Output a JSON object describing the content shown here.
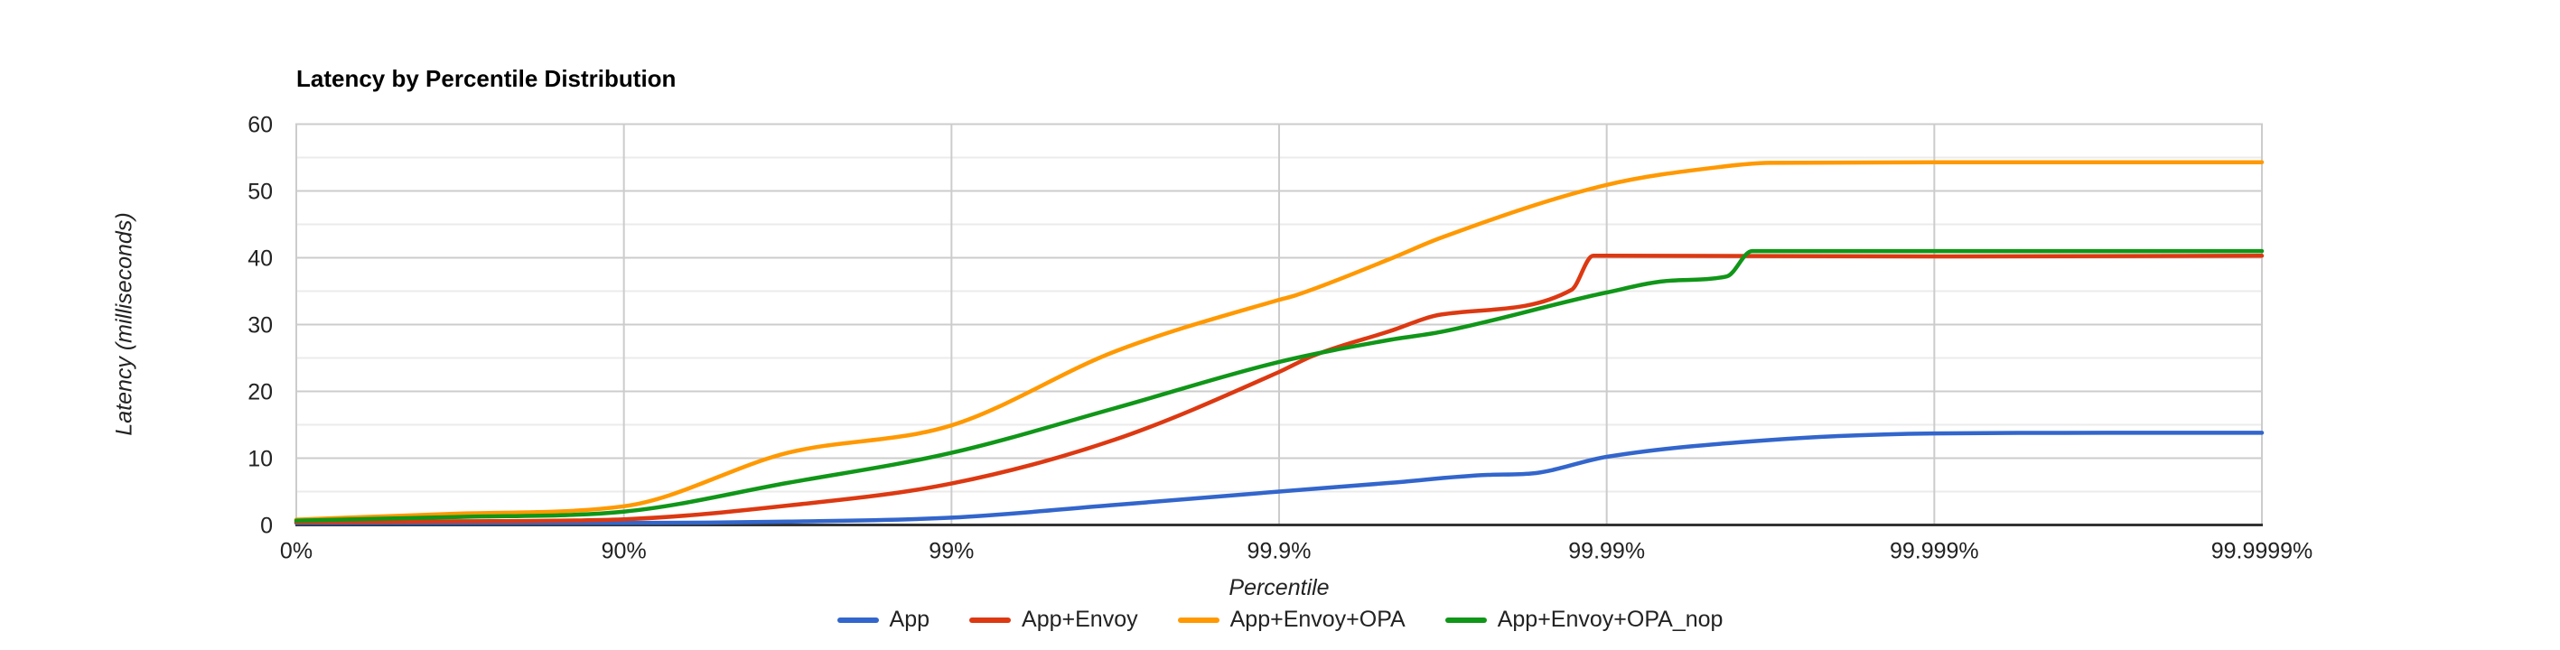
{
  "chart_data": {
    "type": "line",
    "title": "Latency by Percentile Distribution",
    "xlabel": "Percentile",
    "ylabel": "Latency (milliseconds)",
    "grid": true,
    "legend_position": "bottom",
    "x_axis": {
      "scale": "log-percentile",
      "ticks": [
        {
          "label": "0%",
          "p": 0
        },
        {
          "label": "90%",
          "p": 90
        },
        {
          "label": "99%",
          "p": 99
        },
        {
          "label": "99.9%",
          "p": 99.9
        },
        {
          "label": "99.99%",
          "p": 99.99
        },
        {
          "label": "99.999%",
          "p": 99.999
        },
        {
          "label": "99.9999%",
          "p": 99.9999
        }
      ]
    },
    "y_axis": {
      "ylim": [
        0,
        60
      ],
      "major_ticks": [
        0,
        10,
        20,
        30,
        40,
        50,
        60
      ],
      "minor_ticks": [
        5,
        15,
        25,
        35,
        45,
        55
      ]
    },
    "series": [
      {
        "name": "App",
        "color": "#3366CC",
        "points": [
          [
            0,
            0.3
          ],
          [
            68.377,
            0.3
          ],
          [
            90,
            0.3
          ],
          [
            96.838,
            0.5
          ],
          [
            99,
            1.1
          ],
          [
            99.684,
            3.0
          ],
          [
            99.9,
            5.0
          ],
          [
            99.954,
            6.3
          ],
          [
            99.977,
            7.5
          ],
          [
            99.983,
            7.7
          ],
          [
            99.99,
            10.2
          ],
          [
            99.9968,
            12.7
          ],
          [
            99.999,
            13.7
          ],
          [
            99.9997,
            13.8
          ],
          [
            99.9999,
            13.8
          ]
        ]
      },
      {
        "name": "App+Envoy",
        "color": "#DC3912",
        "points": [
          [
            0,
            0.45
          ],
          [
            68.377,
            0.55
          ],
          [
            90,
            0.85
          ],
          [
            96.838,
            2.9
          ],
          [
            99,
            6.2
          ],
          [
            99.684,
            12.8
          ],
          [
            99.9,
            22.9
          ],
          [
            99.921,
            25.3
          ],
          [
            99.954,
            29.0
          ],
          [
            99.968,
            31.5
          ],
          [
            99.9872,
            35.2
          ],
          [
            99.989,
            40.3
          ],
          [
            99.99,
            40.3
          ],
          [
            99.999,
            40.2
          ],
          [
            99.9999,
            40.3
          ]
        ]
      },
      {
        "name": "App+Envoy+OPA",
        "color": "#FF9900",
        "points": [
          [
            0,
            0.8
          ],
          [
            68.377,
            1.7
          ],
          [
            90,
            2.8
          ],
          [
            96.838,
            10.8
          ],
          [
            99,
            14.9
          ],
          [
            99.684,
            26.0
          ],
          [
            99.9,
            33.7
          ],
          [
            99.91,
            34.3
          ],
          [
            99.954,
            39.8
          ],
          [
            99.968,
            43.0
          ],
          [
            99.99,
            50.9
          ],
          [
            99.9955,
            53.6
          ],
          [
            99.9968,
            54.2
          ],
          [
            99.999,
            54.3
          ],
          [
            99.9999,
            54.3
          ]
        ]
      },
      {
        "name": "App+Envoy+OPA_nop",
        "color": "#109618",
        "points": [
          [
            0,
            0.65
          ],
          [
            68.377,
            1.2
          ],
          [
            90,
            2.0
          ],
          [
            96.838,
            6.3
          ],
          [
            99,
            10.8
          ],
          [
            99.684,
            17.5
          ],
          [
            99.9,
            24.4
          ],
          [
            99.954,
            27.7
          ],
          [
            99.968,
            28.9
          ],
          [
            99.99,
            34.8
          ],
          [
            99.9937,
            36.6
          ],
          [
            99.9957,
            37.2
          ],
          [
            99.9964,
            41.0
          ],
          [
            99.999,
            41.0
          ],
          [
            99.9999,
            41.0
          ]
        ]
      }
    ],
    "style": {
      "grid_major_color": "#CCCCCC",
      "grid_minor_color": "#EBEBEB",
      "axis_line_color": "#333333",
      "tick_label_color": "#222222",
      "line_width": 4.5
    }
  }
}
